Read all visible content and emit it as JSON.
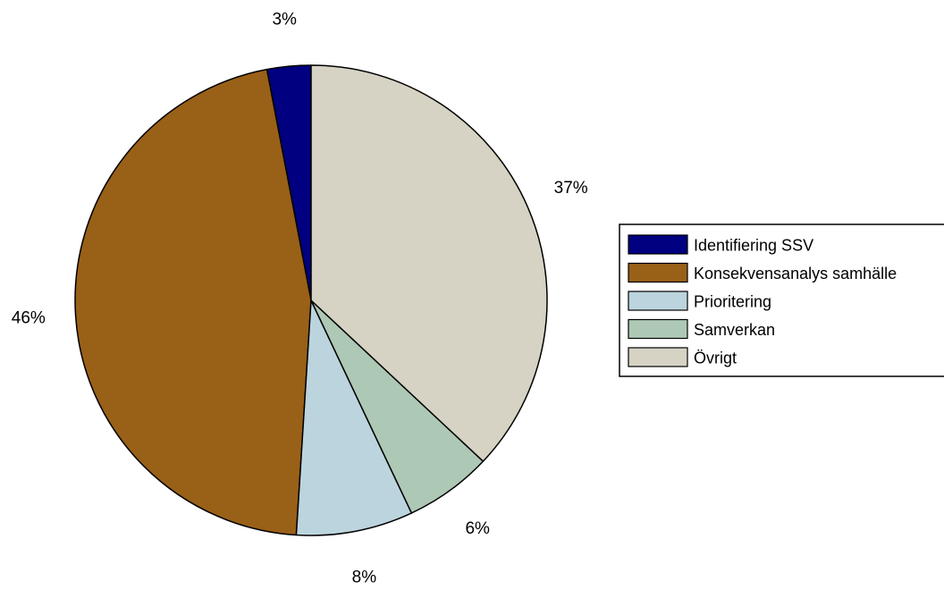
{
  "chart_data": {
    "type": "pie",
    "title": "",
    "slices": [
      {
        "label": "Identifiering SSV",
        "value": 3,
        "display": "3%",
        "color": "#000080"
      },
      {
        "label": "Konsekvensanalys samhälle",
        "value": 46,
        "display": "46%",
        "color": "#996017"
      },
      {
        "label": "Prioritering",
        "value": 8,
        "display": "8%",
        "color": "#bcd4de"
      },
      {
        "label": "Samverkan",
        "value": 6,
        "display": "6%",
        "color": "#aec8b6"
      },
      {
        "label": "Övrigt",
        "value": 37,
        "display": "37%",
        "color": "#d6d3c4"
      }
    ],
    "start_angle_deg": 0,
    "direction": "counterclockwise",
    "legend": {
      "placement": "right",
      "entries": [
        "Identifiering SSV",
        "Konsekvensanalys samhälle",
        "Prioritering",
        "Samverkan",
        "Övrigt"
      ]
    }
  }
}
